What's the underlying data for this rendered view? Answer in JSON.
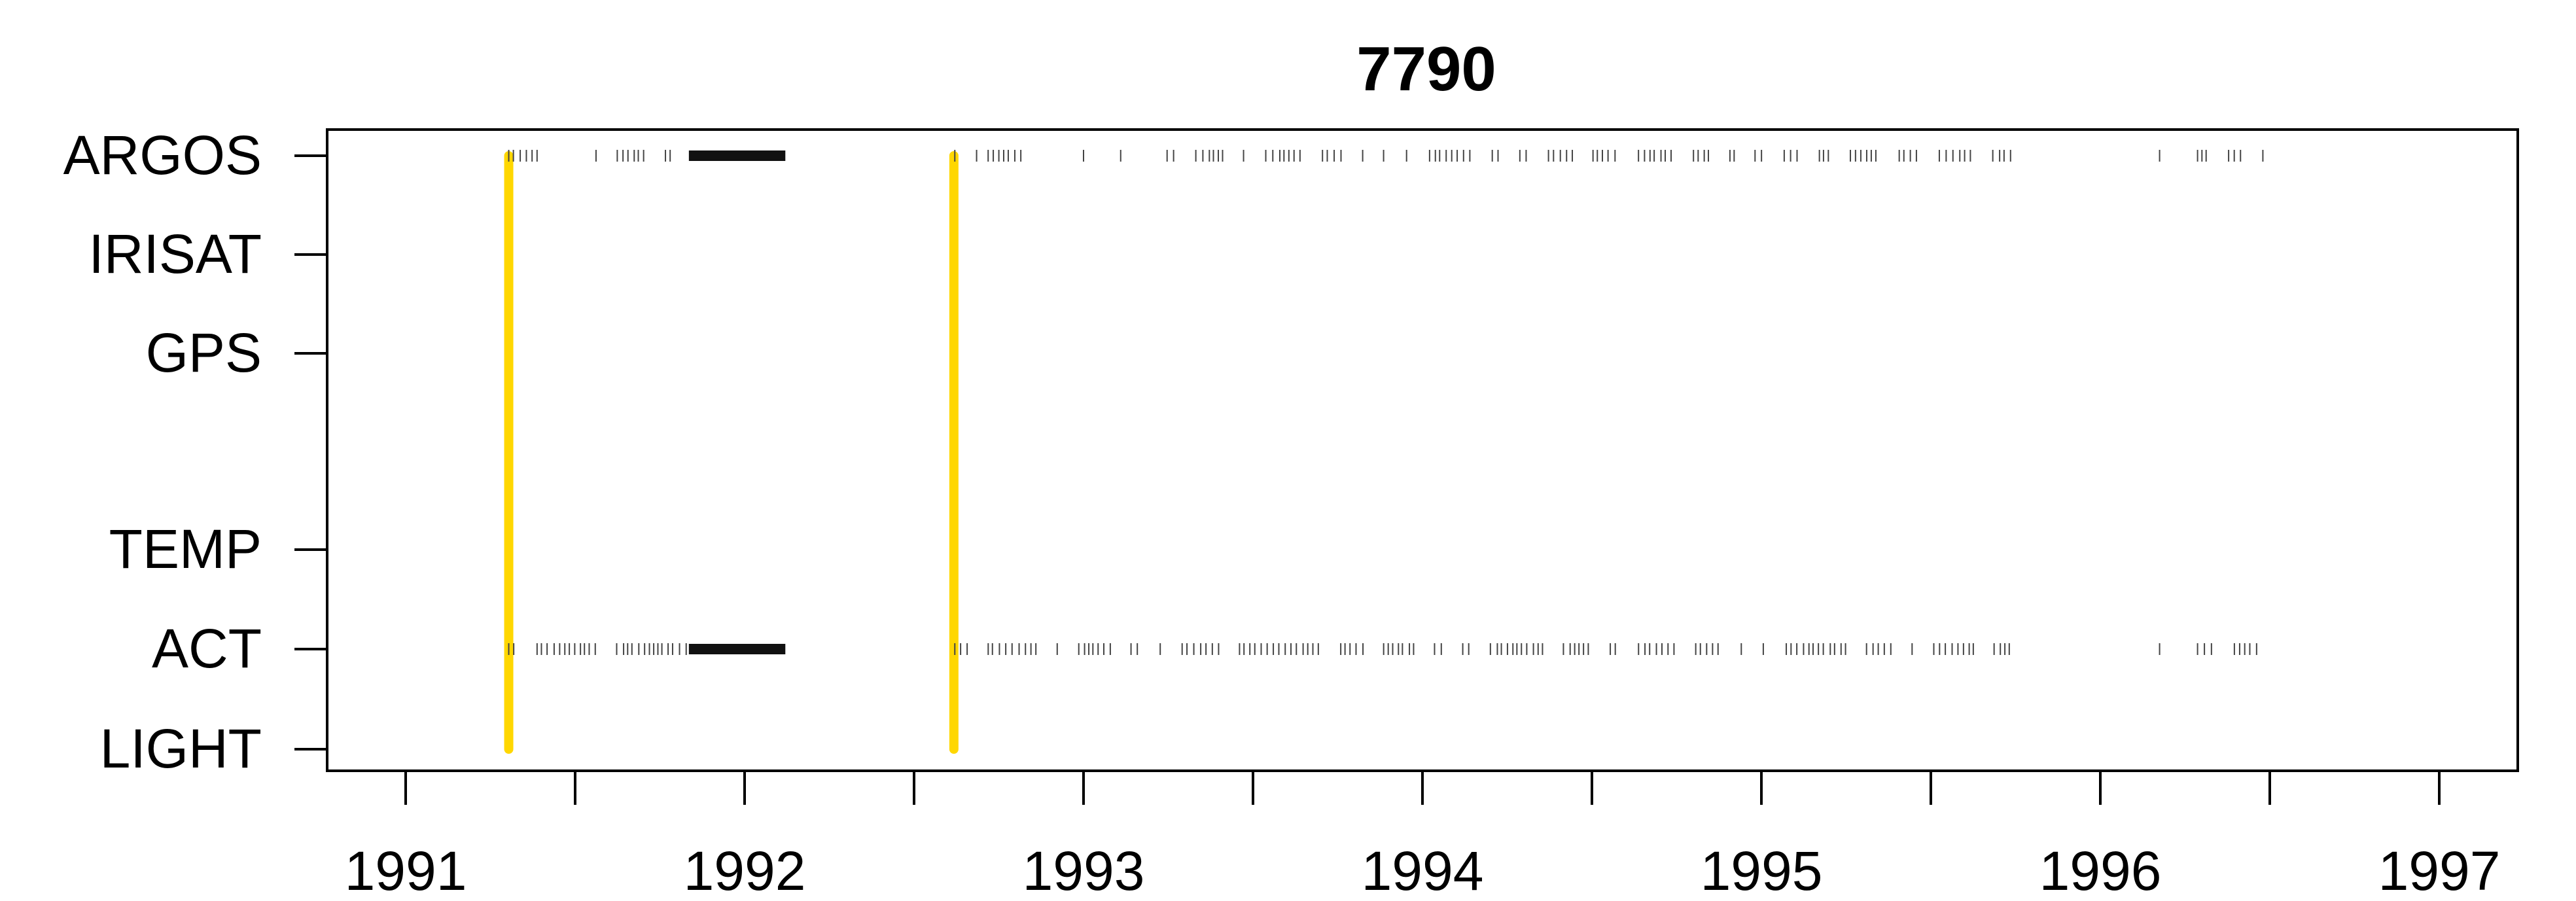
{
  "chart_data": {
    "type": "scatter",
    "title": "7790",
    "xlabel": "",
    "ylabel": "",
    "xlim": [
      "1990-11-01",
      "1997-01-31"
    ],
    "x_tick_labels": [
      "1991",
      "1992",
      "1993",
      "1994",
      "1995",
      "1996",
      "1997"
    ],
    "y_categories": [
      "ARGOS",
      "IRISAT",
      "GPS",
      "TEMP",
      "ACT",
      "LIGHT"
    ],
    "grid": false,
    "legend": "none",
    "series": [
      {
        "category": "ARGOS",
        "color": "#444444",
        "dense_color": "#111111",
        "segments": [
          [
            "1991-04-22",
            "1991-06-08"
          ],
          [
            "1991-07-25",
            "1991-11-01"
          ],
          [
            "1991-11-02",
            "1992-02-14"
          ],
          [
            "1992-08-15",
            "1992-09-10"
          ],
          [
            "1992-09-20",
            "1992-11-15"
          ],
          [
            "1993-01-01",
            "1993-01-05"
          ],
          [
            "1993-02-10",
            "1993-02-14"
          ],
          [
            "1993-04-01",
            "1995-09-30"
          ],
          [
            "1996-03-05",
            "1996-03-08"
          ],
          [
            "1996-04-15",
            "1996-07-01"
          ]
        ],
        "dense": [
          [
            "1991-11-01",
            "1992-02-14"
          ]
        ]
      },
      {
        "category": "ACT",
        "color": "#444444",
        "dense_color": "#111111",
        "segments": [
          [
            "1991-04-22",
            "1991-11-01"
          ],
          [
            "1991-11-02",
            "1992-02-14"
          ],
          [
            "1992-08-15",
            "1995-09-30"
          ],
          [
            "1996-03-05",
            "1996-03-08"
          ],
          [
            "1996-04-15",
            "1996-07-01"
          ]
        ],
        "dense": [
          [
            "1991-11-01",
            "1992-02-14"
          ]
        ]
      }
    ],
    "vertical_markers": {
      "color": "#FFD700",
      "from": "ARGOS",
      "to": "LIGHT",
      "dates": [
        "1991-04-22",
        "1992-08-14"
      ]
    }
  }
}
